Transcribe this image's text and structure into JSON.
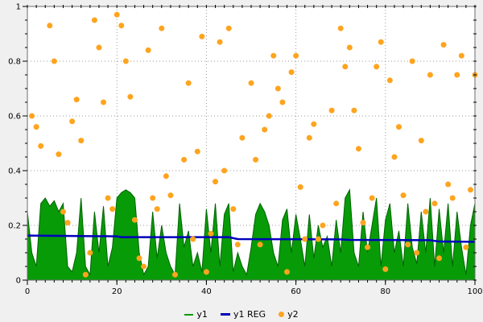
{
  "figure": {
    "bg": "#f0f0f0",
    "plot_bg": "#ffffff",
    "frame_color": "#6e6e6e",
    "grid_color": "#9a9a9a",
    "tick_color": "#000000",
    "tick_label_color": "#000000"
  },
  "chart_data": {
    "type": "mixed",
    "title": "",
    "xlabel": "",
    "ylabel": "",
    "grid": true,
    "legend_position": "bottom-center",
    "x_axis": {
      "min": 0,
      "max": 100,
      "major_ticks": [
        0,
        20,
        40,
        60,
        80,
        100
      ],
      "tick_labels": [
        "0",
        "20",
        "40",
        "60",
        "80",
        "100"
      ],
      "minor_step": 2
    },
    "y_axis": {
      "min": 0,
      "max": 1,
      "major_ticks": [
        0,
        0.2,
        0.4,
        0.6,
        0.8,
        1
      ],
      "tick_labels": [
        "0",
        "0.2",
        "0.4",
        "0.6",
        "0.8",
        "1"
      ],
      "minor_step": 0.05
    },
    "legend": [
      {
        "label": "y1",
        "type": "line-thin",
        "color": "#089b08"
      },
      {
        "label": "y1 REG",
        "type": "line-thick",
        "color": "#0000bb"
      },
      {
        "label": "y2",
        "type": "dot",
        "color": "#ffa41e"
      }
    ],
    "series": [
      {
        "name": "y1",
        "type": "area",
        "fill_color": "#089b08",
        "stroke_color": "#006400",
        "x": {
          "start": 0,
          "step": 1
        },
        "y": [
          0.25,
          0.1,
          0.05,
          0.28,
          0.3,
          0.27,
          0.29,
          0.25,
          0.28,
          0.05,
          0.03,
          0.1,
          0.3,
          0.05,
          0.02,
          0.25,
          0.1,
          0.27,
          0.05,
          0.12,
          0.3,
          0.32,
          0.33,
          0.32,
          0.3,
          0.1,
          0.02,
          0.05,
          0.25,
          0.08,
          0.2,
          0.1,
          0.05,
          0.02,
          0.28,
          0.12,
          0.18,
          0.05,
          0.1,
          0.03,
          0.26,
          0.1,
          0.28,
          0.05,
          0.24,
          0.28,
          0.03,
          0.1,
          0.05,
          0.02,
          0.12,
          0.24,
          0.28,
          0.25,
          0.2,
          0.1,
          0.05,
          0.22,
          0.26,
          0.1,
          0.24,
          0.15,
          0.05,
          0.24,
          0.08,
          0.2,
          0.12,
          0.16,
          0.05,
          0.22,
          0.1,
          0.3,
          0.33,
          0.1,
          0.05,
          0.25,
          0.1,
          0.2,
          0.3,
          0.05,
          0.22,
          0.28,
          0.1,
          0.18,
          0.05,
          0.28,
          0.12,
          0.06,
          0.25,
          0.1,
          0.3,
          0.05,
          0.26,
          0.1,
          0.28,
          0.05,
          0.25,
          0.12,
          0.02,
          0.2,
          0.28
        ]
      },
      {
        "name": "y1 REG",
        "type": "line",
        "color": "#0000bb",
        "width": 2.5,
        "points": [
          [
            0,
            0.163
          ],
          [
            20,
            0.16
          ],
          [
            21,
            0.157
          ],
          [
            45,
            0.157
          ],
          [
            47,
            0.15
          ],
          [
            70,
            0.149
          ],
          [
            72,
            0.147
          ],
          [
            90,
            0.146
          ],
          [
            92,
            0.141
          ],
          [
            100,
            0.14
          ]
        ]
      },
      {
        "name": "y2",
        "type": "scatter",
        "color": "#ffa41e",
        "radius": 3.5,
        "points": [
          [
            1,
            0.6
          ],
          [
            2,
            0.56
          ],
          [
            3,
            0.49
          ],
          [
            5,
            0.93
          ],
          [
            6,
            0.8
          ],
          [
            7,
            0.46
          ],
          [
            8,
            0.25
          ],
          [
            9,
            0.21
          ],
          [
            10,
            0.58
          ],
          [
            11,
            0.66
          ],
          [
            12,
            0.51
          ],
          [
            13,
            0.02
          ],
          [
            14,
            0.1
          ],
          [
            15,
            0.95
          ],
          [
            16,
            0.85
          ],
          [
            17,
            0.65
          ],
          [
            18,
            0.3
          ],
          [
            19,
            0.26
          ],
          [
            20,
            0.97
          ],
          [
            21,
            0.93
          ],
          [
            22,
            0.8
          ],
          [
            23,
            0.67
          ],
          [
            24,
            0.22
          ],
          [
            25,
            0.08
          ],
          [
            26,
            0.05
          ],
          [
            27,
            0.84
          ],
          [
            28,
            0.3
          ],
          [
            29,
            0.26
          ],
          [
            30,
            0.92
          ],
          [
            31,
            0.38
          ],
          [
            32,
            0.31
          ],
          [
            33,
            0.02
          ],
          [
            35,
            0.44
          ],
          [
            36,
            0.72
          ],
          [
            37,
            0.15
          ],
          [
            38,
            0.47
          ],
          [
            39,
            0.89
          ],
          [
            40,
            0.03
          ],
          [
            41,
            0.17
          ],
          [
            42,
            0.36
          ],
          [
            43,
            0.87
          ],
          [
            44,
            0.4
          ],
          [
            45,
            0.92
          ],
          [
            46,
            0.26
          ],
          [
            47,
            0.13
          ],
          [
            48,
            0.52
          ],
          [
            50,
            0.72
          ],
          [
            51,
            0.44
          ],
          [
            52,
            0.13
          ],
          [
            53,
            0.55
          ],
          [
            54,
            0.6
          ],
          [
            55,
            0.82
          ],
          [
            56,
            0.7
          ],
          [
            57,
            0.65
          ],
          [
            58,
            0.03
          ],
          [
            59,
            0.76
          ],
          [
            60,
            0.82
          ],
          [
            61,
            0.34
          ],
          [
            62,
            0.15
          ],
          [
            63,
            0.52
          ],
          [
            64,
            0.57
          ],
          [
            65,
            0.15
          ],
          [
            66,
            0.2
          ],
          [
            68,
            0.62
          ],
          [
            69,
            0.28
          ],
          [
            70,
            0.92
          ],
          [
            71,
            0.78
          ],
          [
            72,
            0.85
          ],
          [
            73,
            0.62
          ],
          [
            74,
            0.48
          ],
          [
            75,
            0.21
          ],
          [
            76,
            0.12
          ],
          [
            77,
            0.3
          ],
          [
            78,
            0.78
          ],
          [
            79,
            0.87
          ],
          [
            80,
            0.04
          ],
          [
            81,
            0.73
          ],
          [
            82,
            0.45
          ],
          [
            83,
            0.56
          ],
          [
            84,
            0.31
          ],
          [
            85,
            0.13
          ],
          [
            86,
            0.8
          ],
          [
            87,
            0.1
          ],
          [
            88,
            0.51
          ],
          [
            89,
            0.25
          ],
          [
            90,
            0.75
          ],
          [
            91,
            0.28
          ],
          [
            92,
            0.08
          ],
          [
            93,
            0.86
          ],
          [
            94,
            0.35
          ],
          [
            95,
            0.3
          ],
          [
            96,
            0.75
          ],
          [
            97,
            0.82
          ],
          [
            98,
            0.12
          ],
          [
            99,
            0.33
          ],
          [
            100,
            0.75
          ]
        ]
      }
    ]
  }
}
